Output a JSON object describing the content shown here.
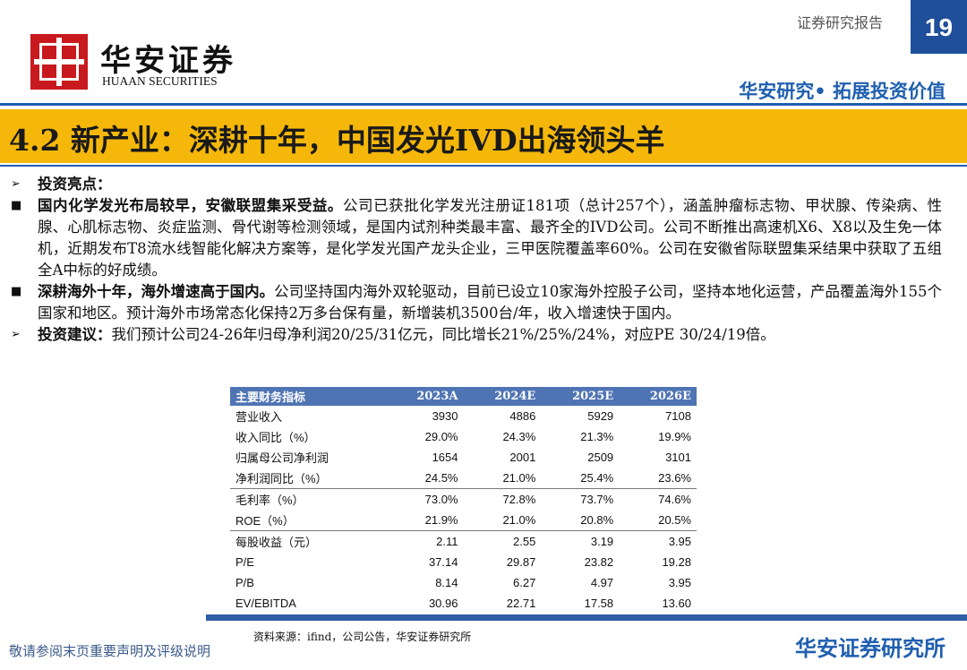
{
  "header": {
    "logo_cn": "华安证券",
    "logo_en": "HUAAN SECURITIES",
    "report_type": "证券研究报告",
    "page_number": "19",
    "slogan": "华安研究• 拓展投资价值"
  },
  "title": "4.2 新产业：深耕十年，中国发光IVD出海领头羊",
  "bullets": [
    {
      "bold": "投资亮点：",
      "text": ""
    },
    {
      "bold": "国内化学发光布局较早，安徽联盟集采受益。",
      "text": "公司已获批化学发光注册证181项（总计257个），涵盖肿瘤标志物、甲状腺、传染病、性腺、心肌标志物、炎症监测、骨代谢等检测领域，是国内试剂种类最丰富、最齐全的IVD公司。公司不断推出高速机X6、X8以及生免一体机，近期发布T8流水线智能化解决方案等，是化学发光国产龙头企业，三甲医院覆盖率60%。公司在安徽省际联盟集采结果中获取了五组全A中标的好成绩。"
    },
    {
      "bold": "深耕海外十年，海外增速高于国内。",
      "text": "公司坚持国内海外双轮驱动，目前已设立10家海外控股子公司，坚持本地化运营，产品覆盖海外155个国家和地区。预计海外市场常态化保持2万多台保有量，新增装机3500台/年，收入增速快于国内。"
    },
    {
      "bold": "投资建议：",
      "text": "我们预计公司24-26年归母净利润20/25/31亿元，同比增长21%/25%/24%，对应PE 30/24/19倍。"
    }
  ],
  "table": {
    "header": [
      "主要财务指标",
      "2023A",
      "2024E",
      "2025E",
      "2026E"
    ],
    "rows": [
      [
        "营业收入",
        "3930",
        "4886",
        "5929",
        "7108"
      ],
      [
        "收入同比（%）",
        "29.0%",
        "24.3%",
        "21.3%",
        "19.9%"
      ],
      [
        "归属母公司净利润",
        "1654",
        "2001",
        "2509",
        "3101"
      ],
      [
        "净利润同比（%）",
        "24.5%",
        "21.0%",
        "25.4%",
        "23.6%"
      ],
      [
        "毛利率（%）",
        "73.0%",
        "72.8%",
        "73.7%",
        "74.6%"
      ],
      [
        "ROE（%）",
        "21.9%",
        "21.0%",
        "20.8%",
        "20.5%"
      ],
      [
        "每股收益（元）",
        "2.11",
        "2.55",
        "3.19",
        "3.95"
      ],
      [
        "P/E",
        "37.14",
        "29.87",
        "23.82",
        "19.28"
      ],
      [
        "P/B",
        "8.14",
        "6.27",
        "4.97",
        "3.95"
      ],
      [
        "EV/EBITDA",
        "30.96",
        "22.71",
        "17.58",
        "13.60"
      ]
    ],
    "source": "资料来源：ifind，公司公告，华安证券研究所"
  },
  "footer": {
    "disclaimer": "敬请参阅末页重要声明及评级说明",
    "institute": "华安证券研究所"
  }
}
